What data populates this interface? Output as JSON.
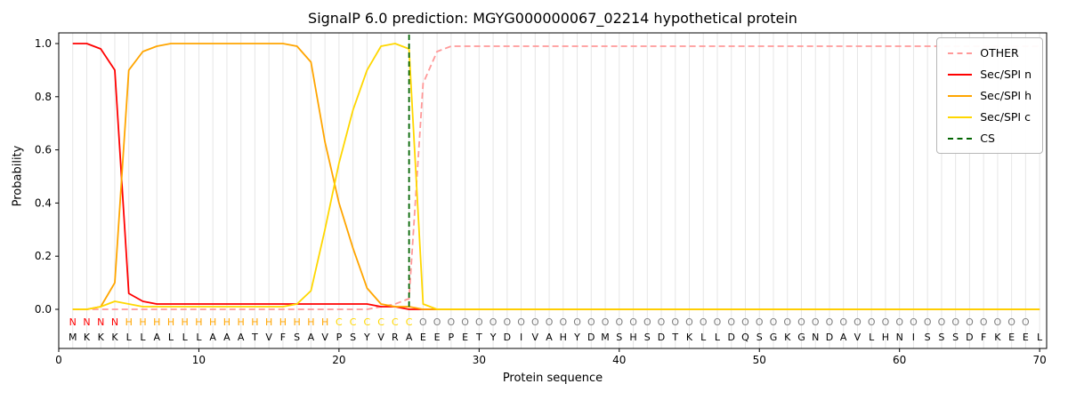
{
  "chart_data": {
    "type": "line",
    "title": "SignalP 6.0 prediction: MGYG000000067_02214 hypothetical protein",
    "xlabel": "Protein sequence",
    "ylabel": "Probability",
    "xlim": [
      0,
      70.5
    ],
    "ylim": [
      -0.15,
      1.04
    ],
    "xticks": [
      0,
      10,
      20,
      30,
      40,
      50,
      60,
      70
    ],
    "yticks": [
      0.0,
      0.2,
      0.4,
      0.6,
      0.8,
      1.0
    ],
    "grid": true,
    "legend_position": "upper right",
    "sequence": "MKKKLLALLLAAATVFSAVPSYVRAEEPETYDIVAHYDMSHSDTKLLDQSGKGNDAVLHNISSSDFKEEL",
    "region_labels": "NNNNHHHHHHHHHHHHHHHCCCCCCOOOOOOOOOOOOOOOOOOOOOOOOOOOOOOOOOOOOOOOOOOOO",
    "label_colors": {
      "N": "#ff0000",
      "H": "#ffa500",
      "C": "#ffd700",
      "O": "#808080"
    },
    "colors": {
      "grid": "#e6e6e6",
      "frame": "#000000",
      "sequence_text": "#000000"
    },
    "series": [
      {
        "name": "OTHER",
        "color": "#ff9999",
        "dash": true,
        "values": [
          0,
          0,
          0,
          0,
          0,
          0,
          0,
          0,
          0,
          0,
          0,
          0,
          0,
          0,
          0,
          0,
          0,
          0,
          0,
          0,
          0,
          0,
          0.01,
          0.02,
          0.04,
          0.85,
          0.97,
          0.99,
          0.99,
          0.99,
          0.99,
          0.99,
          0.99,
          0.99,
          0.99,
          0.99,
          0.99,
          0.99,
          0.99,
          0.99,
          0.99,
          0.99,
          0.99,
          0.99,
          0.99,
          0.99,
          0.99,
          0.99,
          0.99,
          0.99,
          0.99,
          0.99,
          0.99,
          0.99,
          0.99,
          0.99,
          0.99,
          0.99,
          0.99,
          0.99,
          0.99,
          0.99,
          0.99,
          0.99,
          0.99,
          0.99,
          0.99,
          0.99,
          0.99,
          0.99
        ]
      },
      {
        "name": "Sec/SPI n",
        "color": "#ff0000",
        "dash": false,
        "values": [
          1,
          1,
          0.98,
          0.9,
          0.06,
          0.03,
          0.02,
          0.02,
          0.02,
          0.02,
          0.02,
          0.02,
          0.02,
          0.02,
          0.02,
          0.02,
          0.02,
          0.02,
          0.02,
          0.02,
          0.02,
          0.02,
          0.01,
          0.01,
          0,
          0,
          0,
          0,
          0,
          0,
          0,
          0,
          0,
          0,
          0,
          0,
          0,
          0,
          0,
          0,
          0,
          0,
          0,
          0,
          0,
          0,
          0,
          0,
          0,
          0,
          0,
          0,
          0,
          0,
          0,
          0,
          0,
          0,
          0,
          0,
          0,
          0,
          0,
          0,
          0,
          0,
          0,
          0,
          0,
          0
        ]
      },
      {
        "name": "Sec/SPI h",
        "color": "#ffa500",
        "dash": false,
        "values": [
          0,
          0,
          0.01,
          0.1,
          0.9,
          0.97,
          0.99,
          1,
          1,
          1,
          1,
          1,
          1,
          1,
          1,
          1,
          0.99,
          0.93,
          0.63,
          0.4,
          0.23,
          0.08,
          0.02,
          0.01,
          0.01,
          0,
          0,
          0,
          0,
          0,
          0,
          0,
          0,
          0,
          0,
          0,
          0,
          0,
          0,
          0,
          0,
          0,
          0,
          0,
          0,
          0,
          0,
          0,
          0,
          0,
          0,
          0,
          0,
          0,
          0,
          0,
          0,
          0,
          0,
          0,
          0,
          0,
          0,
          0,
          0,
          0,
          0,
          0,
          0,
          0
        ]
      },
      {
        "name": "Sec/SPI c",
        "color": "#ffd700",
        "dash": false,
        "values": [
          0,
          0,
          0.01,
          0.03,
          0.02,
          0.01,
          0.01,
          0.01,
          0.01,
          0.01,
          0.01,
          0.01,
          0.01,
          0.01,
          0.01,
          0.01,
          0.02,
          0.07,
          0.3,
          0.55,
          0.75,
          0.9,
          0.99,
          1,
          0.98,
          0.02,
          0,
          0,
          0,
          0,
          0,
          0,
          0,
          0,
          0,
          0,
          0,
          0,
          0,
          0,
          0,
          0,
          0,
          0,
          0,
          0,
          0,
          0,
          0,
          0,
          0,
          0,
          0,
          0,
          0,
          0,
          0,
          0,
          0,
          0,
          0,
          0,
          0,
          0,
          0,
          0,
          0,
          0,
          0,
          0
        ]
      }
    ],
    "cs": {
      "name": "CS",
      "color": "#006400",
      "dash": true,
      "position": 25
    }
  }
}
